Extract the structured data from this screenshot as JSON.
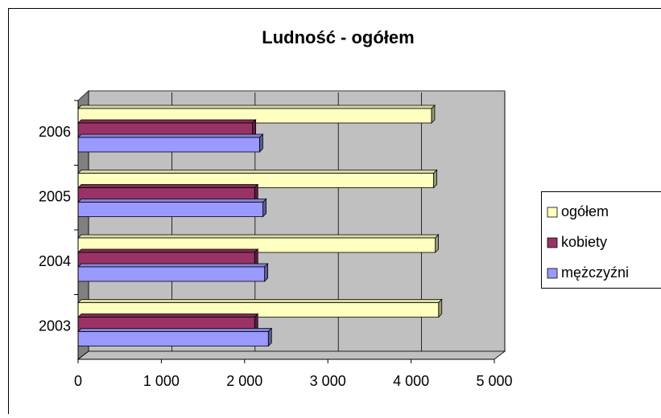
{
  "chart_data": {
    "type": "bar3d",
    "orientation": "horizontal",
    "title": "Ludność - ogółem",
    "categories": [
      "2003",
      "2004",
      "2005",
      "2006"
    ],
    "series": [
      {
        "name": "ogółem",
        "color": "#ffffc0",
        "values": [
          4330,
          4290,
          4270,
          4245
        ]
      },
      {
        "name": "kobiety",
        "color": "#993366",
        "values": [
          2120,
          2120,
          2120,
          2095
        ]
      },
      {
        "name": "mężczyźni",
        "color": "#9999ff",
        "values": [
          2285,
          2240,
          2220,
          2180
        ]
      }
    ],
    "xlim": [
      0,
      5000
    ],
    "xticks": [
      0,
      {
        "value": 1000,
        "label": "1 000"
      },
      {
        "value": 2000,
        "label": "2 000"
      },
      {
        "value": 3000,
        "label": "3 000"
      },
      {
        "value": 4000,
        "label": "4 000"
      },
      {
        "value": 5000,
        "label": "5 000"
      }
    ],
    "grid": true,
    "legend": "right"
  }
}
